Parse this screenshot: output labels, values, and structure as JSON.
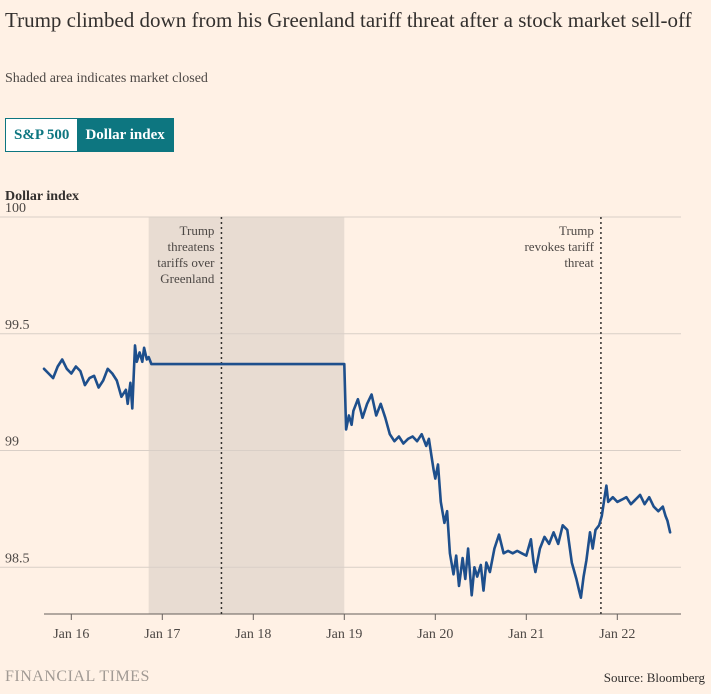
{
  "title": "Trump climbed down from his Greenland tariff threat after a stock market sell-off",
  "subtitle": "Shaded area indicates market closed",
  "toggle": {
    "options": [
      "S&P 500",
      "Dollar index"
    ],
    "selected": "Dollar index"
  },
  "footer": {
    "brand": "FINANCIAL TIMES",
    "source": "Source: Bloomberg"
  },
  "colors": {
    "background": "#fff1e5",
    "line": "#1e4f8c",
    "shade": "#e8dcd2",
    "grid": "#d9cfc7",
    "accent": "#0d7680"
  },
  "chart_data": {
    "type": "line",
    "title": "Dollar index",
    "ylabel": "Dollar index",
    "xlabel": "",
    "ylim": [
      98.3,
      100
    ],
    "xlim": [
      15.7,
      22.7
    ],
    "yticks": [
      100,
      99.5,
      99,
      98.5
    ],
    "ytick_labels": [
      "100",
      "99.5",
      "99",
      "98.5"
    ],
    "xticks": [
      16,
      17,
      18,
      19,
      20,
      21,
      22
    ],
    "xtick_labels": [
      "Jan 16",
      "Jan 17",
      "Jan 18",
      "Jan 19",
      "Jan 20",
      "Jan 21",
      "Jan 22"
    ],
    "shaded": {
      "start": 16.85,
      "end": 19.0,
      "label": "Market closed"
    },
    "annotations": [
      {
        "x": 17.65,
        "lines": [
          "Trump",
          "threatens",
          "tariffs over",
          "Greenland"
        ],
        "align": "end"
      },
      {
        "x": 21.82,
        "lines": [
          "Trump",
          "revokes tariff",
          "threat"
        ],
        "align": "end"
      }
    ],
    "series": [
      {
        "name": "Dollar index",
        "points": [
          [
            15.7,
            99.35
          ],
          [
            15.75,
            99.33
          ],
          [
            15.8,
            99.31
          ],
          [
            15.85,
            99.36
          ],
          [
            15.9,
            99.39
          ],
          [
            15.95,
            99.35
          ],
          [
            16.0,
            99.33
          ],
          [
            16.05,
            99.36
          ],
          [
            16.1,
            99.34
          ],
          [
            16.15,
            99.28
          ],
          [
            16.2,
            99.31
          ],
          [
            16.25,
            99.32
          ],
          [
            16.3,
            99.27
          ],
          [
            16.35,
            99.3
          ],
          [
            16.4,
            99.35
          ],
          [
            16.45,
            99.33
          ],
          [
            16.5,
            99.3
          ],
          [
            16.55,
            99.23
          ],
          [
            16.6,
            99.26
          ],
          [
            16.62,
            99.2
          ],
          [
            16.65,
            99.29
          ],
          [
            16.67,
            99.18
          ],
          [
            16.7,
            99.45
          ],
          [
            16.72,
            99.38
          ],
          [
            16.75,
            99.42
          ],
          [
            16.78,
            99.38
          ],
          [
            16.8,
            99.44
          ],
          [
            16.83,
            99.39
          ],
          [
            16.85,
            99.4
          ],
          [
            16.88,
            99.37
          ],
          [
            19.0,
            99.37
          ],
          [
            19.02,
            99.09
          ],
          [
            19.05,
            99.15
          ],
          [
            19.08,
            99.11
          ],
          [
            19.1,
            99.17
          ],
          [
            19.15,
            99.22
          ],
          [
            19.2,
            99.14
          ],
          [
            19.25,
            99.2
          ],
          [
            19.3,
            99.24
          ],
          [
            19.35,
            99.15
          ],
          [
            19.4,
            99.2
          ],
          [
            19.45,
            99.14
          ],
          [
            19.5,
            99.07
          ],
          [
            19.55,
            99.04
          ],
          [
            19.6,
            99.06
          ],
          [
            19.65,
            99.03
          ],
          [
            19.7,
            99.05
          ],
          [
            19.75,
            99.06
          ],
          [
            19.8,
            99.04
          ],
          [
            19.85,
            99.07
          ],
          [
            19.9,
            99.02
          ],
          [
            19.93,
            99.05
          ],
          [
            19.96,
            98.97
          ],
          [
            19.98,
            98.92
          ],
          [
            20.0,
            98.88
          ],
          [
            20.03,
            98.94
          ],
          [
            20.06,
            98.78
          ],
          [
            20.1,
            98.69
          ],
          [
            20.13,
            98.74
          ],
          [
            20.16,
            98.56
          ],
          [
            20.2,
            98.47
          ],
          [
            20.23,
            98.55
          ],
          [
            20.26,
            98.42
          ],
          [
            20.3,
            98.54
          ],
          [
            20.33,
            98.45
          ],
          [
            20.36,
            98.58
          ],
          [
            20.4,
            98.38
          ],
          [
            20.43,
            98.5
          ],
          [
            20.46,
            98.46
          ],
          [
            20.5,
            98.51
          ],
          [
            20.53,
            98.4
          ],
          [
            20.56,
            98.52
          ],
          [
            20.6,
            98.48
          ],
          [
            20.65,
            98.58
          ],
          [
            20.7,
            98.64
          ],
          [
            20.75,
            98.56
          ],
          [
            20.8,
            98.57
          ],
          [
            20.85,
            98.56
          ],
          [
            20.9,
            98.57
          ],
          [
            20.95,
            98.56
          ],
          [
            21.0,
            98.55
          ],
          [
            21.05,
            98.62
          ],
          [
            21.08,
            98.52
          ],
          [
            21.1,
            98.48
          ],
          [
            21.15,
            98.58
          ],
          [
            21.2,
            98.63
          ],
          [
            21.25,
            98.6
          ],
          [
            21.3,
            98.65
          ],
          [
            21.35,
            98.6
          ],
          [
            21.4,
            98.68
          ],
          [
            21.45,
            98.66
          ],
          [
            21.5,
            98.52
          ],
          [
            21.55,
            98.45
          ],
          [
            21.58,
            98.4
          ],
          [
            21.6,
            98.37
          ],
          [
            21.63,
            98.46
          ],
          [
            21.66,
            98.53
          ],
          [
            21.7,
            98.65
          ],
          [
            21.73,
            98.58
          ],
          [
            21.76,
            98.66
          ],
          [
            21.8,
            98.68
          ],
          [
            21.83,
            98.72
          ],
          [
            21.86,
            98.8
          ],
          [
            21.88,
            98.85
          ],
          [
            21.9,
            98.78
          ],
          [
            21.95,
            98.8
          ],
          [
            22.0,
            98.78
          ],
          [
            22.05,
            98.79
          ],
          [
            22.1,
            98.8
          ],
          [
            22.15,
            98.77
          ],
          [
            22.2,
            98.79
          ],
          [
            22.25,
            98.81
          ],
          [
            22.3,
            98.77
          ],
          [
            22.35,
            98.8
          ],
          [
            22.4,
            98.76
          ],
          [
            22.45,
            98.74
          ],
          [
            22.5,
            98.76
          ],
          [
            22.53,
            98.72
          ],
          [
            22.55,
            98.7
          ],
          [
            22.58,
            98.65
          ]
        ]
      }
    ]
  }
}
